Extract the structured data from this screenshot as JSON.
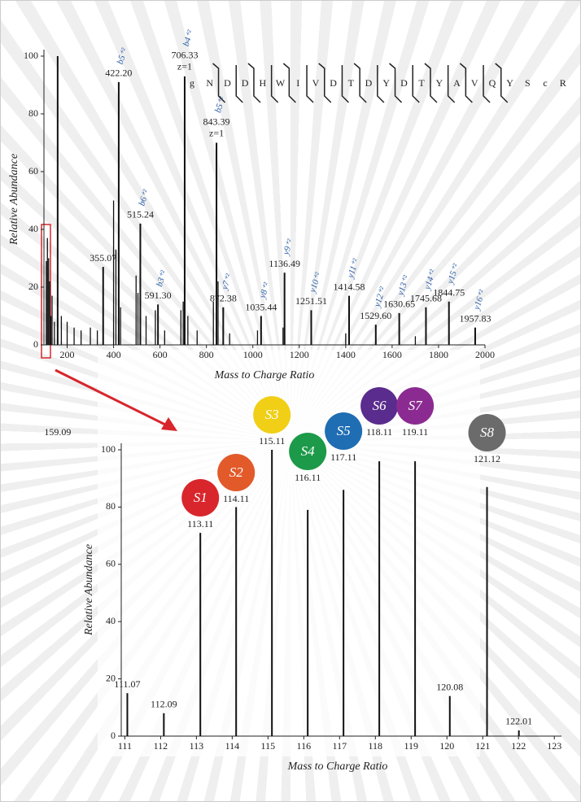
{
  "chart_data": [
    {
      "type": "bar",
      "xlabel": "Mass to Charge Ratio",
      "ylabel": "Relative Abundance",
      "xlim": [
        100,
        2000
      ],
      "ylim": [
        0,
        100
      ],
      "xticks": [
        200,
        400,
        600,
        800,
        1000,
        1200,
        1400,
        1600,
        1800,
        2000
      ],
      "yticks": [
        0,
        20,
        40,
        60,
        80,
        100
      ],
      "color": "#111111",
      "ion_color": "#2d5fa8",
      "sequence": [
        "g",
        "N",
        "D",
        "D",
        "H",
        "W",
        "I",
        "V",
        "D",
        "T",
        "D",
        "Y",
        "D",
        "T",
        "Y",
        "A",
        "V",
        "Q",
        "Y",
        "S",
        "c",
        "R"
      ],
      "x": [
        110,
        115,
        120,
        125,
        130,
        135,
        145,
        159.09,
        175,
        200,
        230,
        260,
        300,
        330,
        355.07,
        400,
        410,
        422.2,
        430,
        497,
        505,
        515.24,
        540,
        580,
        591.3,
        620,
        690,
        700,
        706.33,
        720,
        760,
        830,
        843.39,
        850,
        872.38,
        900,
        1020,
        1035.44,
        1130,
        1136.49,
        1251.51,
        1400,
        1414.58,
        1529.6,
        1630.65,
        1700,
        1745.68,
        1844.75,
        1957.83
      ],
      "values": [
        29,
        37,
        30,
        22,
        10,
        17,
        8,
        100,
        10,
        8,
        6,
        5,
        6,
        5,
        27,
        50,
        33,
        91,
        13,
        24,
        18,
        42,
        10,
        12,
        14,
        5,
        12,
        15,
        93,
        10,
        5,
        15,
        70,
        22,
        13,
        4,
        5,
        10,
        6,
        25,
        12,
        4,
        17,
        7,
        11,
        3,
        13,
        15,
        6
      ],
      "x_labels": [
        null,
        null,
        null,
        null,
        null,
        null,
        null,
        "159.09",
        null,
        null,
        null,
        null,
        null,
        null,
        "355.07",
        null,
        null,
        "422.20",
        null,
        null,
        null,
        "515.24",
        null,
        null,
        "591.30",
        null,
        null,
        null,
        "706.33",
        null,
        null,
        null,
        "843.39",
        null,
        "872.38",
        null,
        null,
        "1035.44",
        null,
        "1136.49",
        "1251.51",
        null,
        "1414.58",
        "1529.60",
        "1630.65",
        null,
        "1745.68",
        "1844.75",
        "1957.83"
      ],
      "ions": [
        null,
        null,
        null,
        null,
        null,
        null,
        null,
        null,
        null,
        null,
        null,
        null,
        null,
        null,
        null,
        null,
        null,
        "b5⁺²",
        null,
        null,
        null,
        "b6⁺²",
        null,
        null,
        "b3⁺²",
        null,
        null,
        null,
        "b4⁺²",
        null,
        null,
        null,
        "b5⁺²",
        null,
        "y7⁺²",
        null,
        null,
        "y8⁺²",
        null,
        "y9⁺²",
        "y10⁺²",
        null,
        "y11⁺²",
        "y12⁺²",
        "y13⁺²",
        null,
        "y14⁺²",
        "y15⁺²",
        "y16⁺²"
      ],
      "charges": [
        null,
        null,
        null,
        null,
        null,
        null,
        null,
        null,
        null,
        null,
        null,
        null,
        null,
        null,
        null,
        null,
        null,
        null,
        null,
        null,
        null,
        null,
        null,
        null,
        null,
        null,
        null,
        null,
        "z=1",
        null,
        null,
        null,
        "z=1",
        null,
        null,
        null,
        null,
        null,
        null,
        null,
        null,
        null,
        null,
        null,
        null,
        null,
        null,
        null,
        null
      ]
    },
    {
      "type": "bar",
      "xlabel": "Mass to Charge Ratio",
      "ylabel": "Relative Abundance",
      "xlim": [
        110.9,
        123.2
      ],
      "ylim": [
        0,
        100
      ],
      "xticks": [
        111,
        112,
        113,
        114,
        115,
        116,
        117,
        118,
        119,
        120,
        121,
        122,
        123
      ],
      "yticks": [
        0,
        20,
        40,
        60,
        80,
        100
      ],
      "color": "#111111",
      "x": [
        111.07,
        112.09,
        113.11,
        114.11,
        115.11,
        116.11,
        117.11,
        118.11,
        119.11,
        120.08,
        121.12,
        122.01
      ],
      "values": [
        15,
        8,
        71,
        80,
        100,
        79,
        86,
        96,
        96,
        14,
        87,
        2
      ],
      "x_labels": [
        "111.07",
        "112.09",
        "113.11",
        "114.11",
        "115.11",
        "116.11",
        "117.11",
        "118.11",
        "119.11",
        "120.08",
        "121.12",
        "122.01"
      ],
      "reporters": [
        null,
        null,
        "S1",
        "S2",
        "S3",
        "S4",
        "S5",
        "S6",
        "S7",
        null,
        "S8",
        null
      ],
      "reporter_colors": [
        null,
        null,
        "#d8262c",
        "#e25a2a",
        "#f0cf16",
        "#1c9a49",
        "#1f6db3",
        "#5a2c8d",
        "#8b2b91",
        null,
        "#6b6b6b",
        null
      ]
    }
  ]
}
